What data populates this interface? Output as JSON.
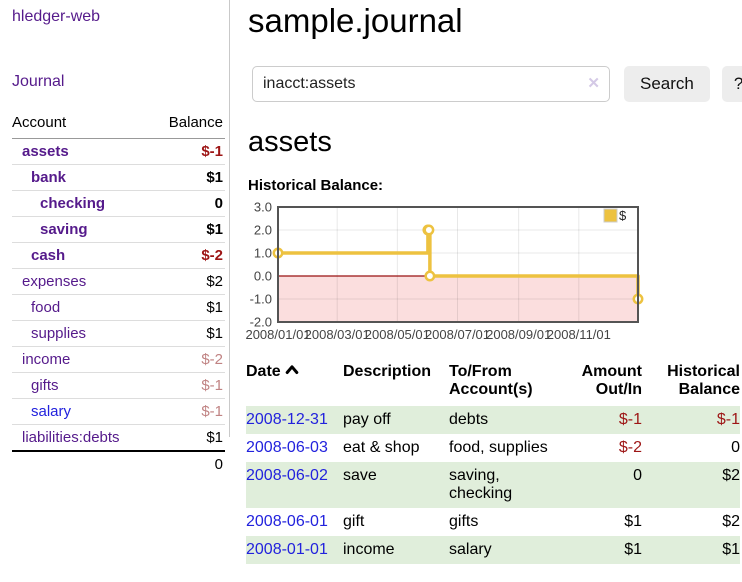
{
  "app": {
    "title": "hledger-web"
  },
  "sidebar": {
    "journal_link": "Journal",
    "headers": {
      "account": "Account",
      "balance": "Balance"
    },
    "accounts": [
      {
        "name": "assets",
        "balance": "$-1"
      },
      {
        "name": "bank",
        "balance": "$1"
      },
      {
        "name": "checking",
        "balance": "0"
      },
      {
        "name": "saving",
        "balance": "$1"
      },
      {
        "name": "cash",
        "balance": "$-2"
      },
      {
        "name": "expenses",
        "balance": "$2"
      },
      {
        "name": "food",
        "balance": "$1"
      },
      {
        "name": "supplies",
        "balance": "$1"
      },
      {
        "name": "income",
        "balance": "$-2"
      },
      {
        "name": "gifts",
        "balance": "$-1"
      },
      {
        "name": "salary",
        "balance": "$-1"
      },
      {
        "name": "liabilities:debts",
        "balance": "$1"
      }
    ],
    "total": "0"
  },
  "header": {
    "title": "sample.journal"
  },
  "search": {
    "value": "inacct:assets",
    "clear_icon": "✕",
    "button_label": "Search",
    "help_label": "?"
  },
  "account_page": {
    "heading": "assets",
    "chart_title": "Historical Balance:"
  },
  "chart_data": {
    "type": "line",
    "title": "Historical Balance",
    "legend": "$",
    "legend_position": "top-right",
    "step": true,
    "xlim": [
      "2008-01-01",
      "2008-12-31"
    ],
    "ylim": [
      -2,
      3
    ],
    "y_ticks": [
      3.0,
      2.0,
      1.0,
      0.0,
      -1.0,
      -2.0
    ],
    "x_ticks": [
      "2008/01/01",
      "2008/03/01",
      "2008/05/01",
      "2008/07/01",
      "2008/09/01",
      "2008/11/01"
    ],
    "series": [
      {
        "name": "$",
        "points": [
          [
            "2008-01-01",
            1
          ],
          [
            "2008-06-01",
            2
          ],
          [
            "2008-06-02",
            2
          ],
          [
            "2008-06-03",
            0
          ],
          [
            "2008-12-31",
            -1
          ]
        ]
      }
    ],
    "line_color": "#edc240",
    "marker_fill": "#ffffff",
    "negative_region_fill": "#fbdede",
    "zero_line_color": "#991111",
    "grid_color": "rgba(0,0,0,0.09)",
    "border_color": "#545454",
    "tick_label_color": "#444444"
  },
  "register_table": {
    "headers": {
      "date": "Date",
      "description": "Description",
      "accounts": "To/From Account(s)",
      "amount": "Amount Out/In",
      "balance": "Historical Balance"
    },
    "rows": [
      {
        "date": "2008-12-31",
        "description": "pay off",
        "accounts": "debts",
        "amount": "$-1",
        "balance": "$-1"
      },
      {
        "date": "2008-06-03",
        "description": "eat & shop",
        "accounts": "food, supplies",
        "amount": "$-2",
        "balance": "0"
      },
      {
        "date": "2008-06-02",
        "description": "save",
        "accounts": "saving, checking",
        "amount": "0",
        "balance": "$2"
      },
      {
        "date": "2008-06-01",
        "description": "gift",
        "accounts": "gifts",
        "amount": "$1",
        "balance": "$2"
      },
      {
        "date": "2008-01-01",
        "description": "income",
        "accounts": "salary",
        "amount": "$1",
        "balance": "$1"
      }
    ]
  },
  "colors": {
    "link_purple": "#551A8B",
    "link_blue": "#2222dd",
    "negative_strong": "#9d1515",
    "negative_soft": "#c08383",
    "row_green": "#e0eedb",
    "button_bg": "#ededed"
  }
}
